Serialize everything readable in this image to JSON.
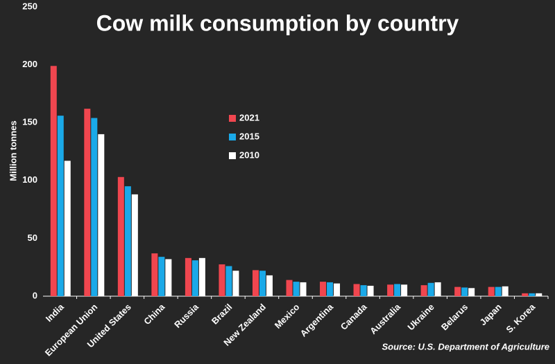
{
  "chart_data": {
    "type": "bar",
    "title": "Cow milk consumption by country",
    "y_label": "Million tonnes",
    "source": "Source: U.S. Department of Agriculture",
    "categories": [
      "India",
      "European Union",
      "United States",
      "China",
      "Russia",
      "Brazil",
      "New Zealand",
      "Mexico",
      "Argentina",
      "Canada",
      "Australia",
      "Ukraine",
      "Belarus",
      "Japan",
      "S. Korea"
    ],
    "series": [
      {
        "name": "2021",
        "color": "#f0464f",
        "values": [
          199,
          162,
          103,
          37,
          33,
          27.5,
          22.5,
          14,
          12.5,
          10.5,
          10,
          9.5,
          8,
          8,
          2.5
        ]
      },
      {
        "name": "2015",
        "color": "#1aa9e8",
        "values": [
          156,
          154,
          95,
          34,
          31,
          26,
          22,
          12.5,
          12,
          9.5,
          10.5,
          11.5,
          7.5,
          8,
          2.5
        ]
      },
      {
        "name": "2010",
        "color": "#ffffff",
        "values": [
          117,
          140,
          88,
          32,
          33,
          22,
          18,
          12,
          11,
          9,
          10,
          12,
          7,
          8.5,
          2.5
        ]
      }
    ],
    "ylim": [
      0,
      250
    ],
    "yticks": [
      0,
      50,
      100,
      150,
      200,
      250
    ],
    "grid": false
  }
}
